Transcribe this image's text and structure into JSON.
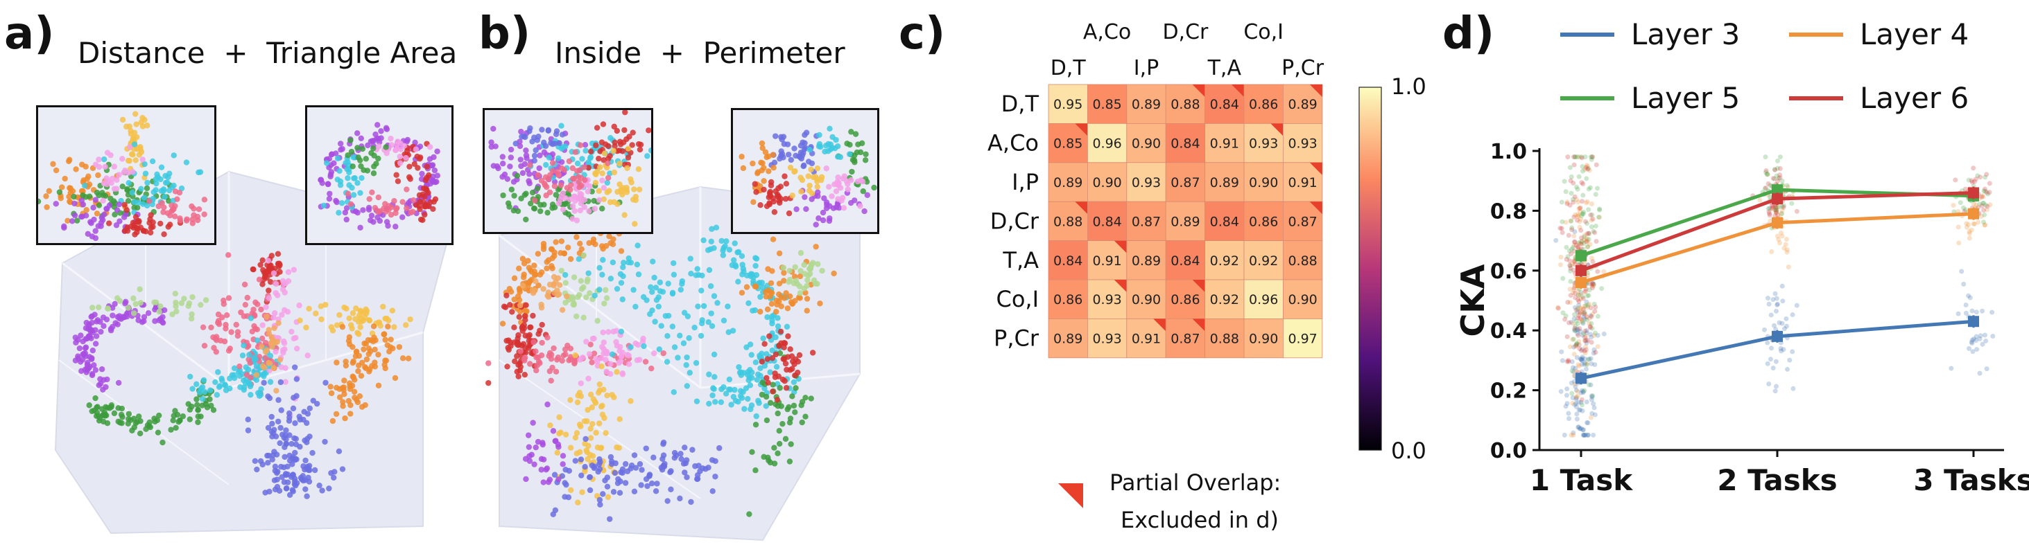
{
  "panels": {
    "a": {
      "letter": "a)",
      "title": "Distance  +  Triangle Area"
    },
    "b": {
      "letter": "b)",
      "title": "Inside  +  Perimeter"
    },
    "c": {
      "letter": "c)"
    },
    "d": {
      "letter": "d)"
    }
  },
  "scatter_palette": [
    "#f08a2c",
    "#3dc9e0",
    "#6a6fe0",
    "#a84de0",
    "#3d9b3d",
    "#ef6a88",
    "#d63030",
    "#f5c14a",
    "#f4a0e8",
    "#b0d890",
    "#f2a860"
  ],
  "chart_data": [
    {
      "type": "heatmap",
      "panel": "c",
      "row_labels": [
        "D,T",
        "A,Co",
        "I,P",
        "D,Cr",
        "T,A",
        "Co,I",
        "P,Cr"
      ],
      "col_labels_lower": [
        "D,T",
        "I,P",
        "T,A",
        "P,Cr"
      ],
      "col_labels_upper": [
        "A,Co",
        "D,Cr",
        "Co,I"
      ],
      "values": [
        [
          0.95,
          0.85,
          0.89,
          0.88,
          0.84,
          0.86,
          0.89
        ],
        [
          0.85,
          0.96,
          0.9,
          0.84,
          0.91,
          0.93,
          0.93
        ],
        [
          0.89,
          0.9,
          0.93,
          0.87,
          0.89,
          0.9,
          0.91
        ],
        [
          0.88,
          0.84,
          0.87,
          0.89,
          0.84,
          0.86,
          0.87
        ],
        [
          0.84,
          0.91,
          0.89,
          0.84,
          0.92,
          0.92,
          0.88
        ],
        [
          0.86,
          0.93,
          0.9,
          0.86,
          0.92,
          0.96,
          0.9
        ],
        [
          0.89,
          0.93,
          0.91,
          0.87,
          0.88,
          0.9,
          0.97
        ]
      ],
      "partial_overlap": [
        [
          0,
          3
        ],
        [
          0,
          4
        ],
        [
          0,
          6
        ],
        [
          1,
          0
        ],
        [
          1,
          5
        ],
        [
          2,
          6
        ],
        [
          3,
          0
        ],
        [
          3,
          6
        ],
        [
          4,
          1
        ],
        [
          5,
          1
        ],
        [
          5,
          3
        ],
        [
          6,
          2
        ],
        [
          6,
          3
        ]
      ],
      "colorbar": {
        "min": 0.0,
        "max": 1.0,
        "min_label": "0.0",
        "max_label": "1.0"
      },
      "legend_text_line1": "Partial Overlap:",
      "legend_text_line2": "Excluded in d)",
      "marker_color": "#e8402a"
    },
    {
      "type": "line",
      "panel": "d",
      "categories": [
        "1 Task",
        "2 Tasks",
        "3 Tasks"
      ],
      "ylabel": "CKA",
      "ylim": [
        0.0,
        1.0
      ],
      "yticks": [
        "0.0",
        "0.2",
        "0.4",
        "0.6",
        "0.8",
        "1.0"
      ],
      "series": [
        {
          "name": "Layer 3",
          "color": "#4478b4",
          "values": [
            0.24,
            0.38,
            0.43
          ]
        },
        {
          "name": "Layer 4",
          "color": "#f0923a",
          "values": [
            0.56,
            0.76,
            0.79
          ]
        },
        {
          "name": "Layer 5",
          "color": "#4aa84a",
          "values": [
            0.65,
            0.87,
            0.85
          ]
        },
        {
          "name": "Layer 6",
          "color": "#cc3a3a",
          "values": [
            0.6,
            0.84,
            0.86
          ]
        }
      ]
    }
  ]
}
